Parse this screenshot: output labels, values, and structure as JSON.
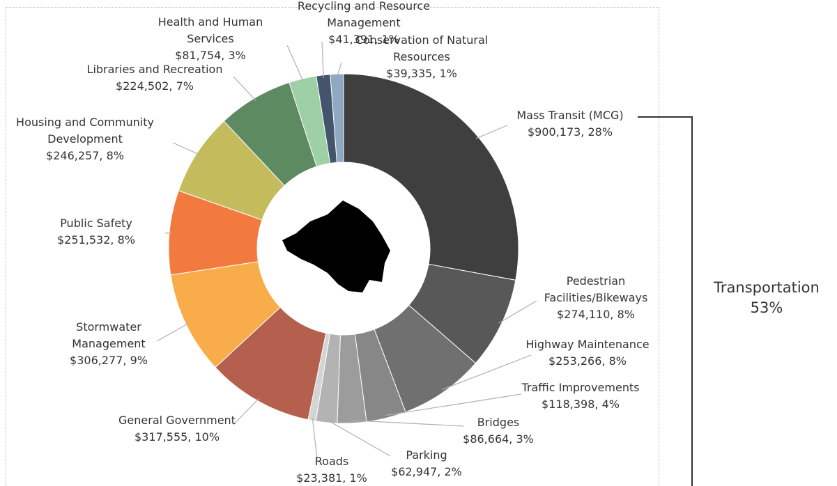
{
  "chart_data": {
    "type": "donut",
    "categories": [
      "Mass Transit (MCG)",
      "Pedestrian Facilities/Bikeways",
      "Highway Maintenance",
      "Traffic Improvements",
      "Bridges",
      "Parking",
      "Roads",
      "General Government",
      "Stormwater Management",
      "Public Safety",
      "Housing and Community Development",
      "Libraries and Recreation",
      "Health and Human Services",
      "Recycling and Resource Management",
      "Conservation of Natural Resources"
    ],
    "values": [
      900173,
      274110,
      253266,
      118398,
      86664,
      62947,
      23381,
      317555,
      306277,
      251532,
      246257,
      224502,
      81754,
      41391,
      39335
    ],
    "value_labels": [
      "$900,173, 28%",
      "$274,110, 8%",
      "$253,266, 8%",
      "$118,398, 4%",
      "$86,664, 3%",
      "$62,947, 2%",
      "$23,381, 1%",
      "$317,555, 10%",
      "$306,277, 9%",
      "$251,532, 8%",
      "$246,257, 8%",
      "$224,502, 7%",
      "$81,754, 3%",
      "$41,391, 1%",
      "$39,335, 1%"
    ],
    "colors": [
      "#3f3f3f",
      "#585858",
      "#707070",
      "#878787",
      "#9c9c9c",
      "#b3b3b3",
      "#d4d4d4",
      "#b5604e",
      "#f8ad4a",
      "#f27a3e",
      "#c3bb5c",
      "#5e8a61",
      "#9ecfa6",
      "#44546a",
      "#8ea9c1"
    ],
    "group_label": "Transportation",
    "group_share": "53%"
  }
}
